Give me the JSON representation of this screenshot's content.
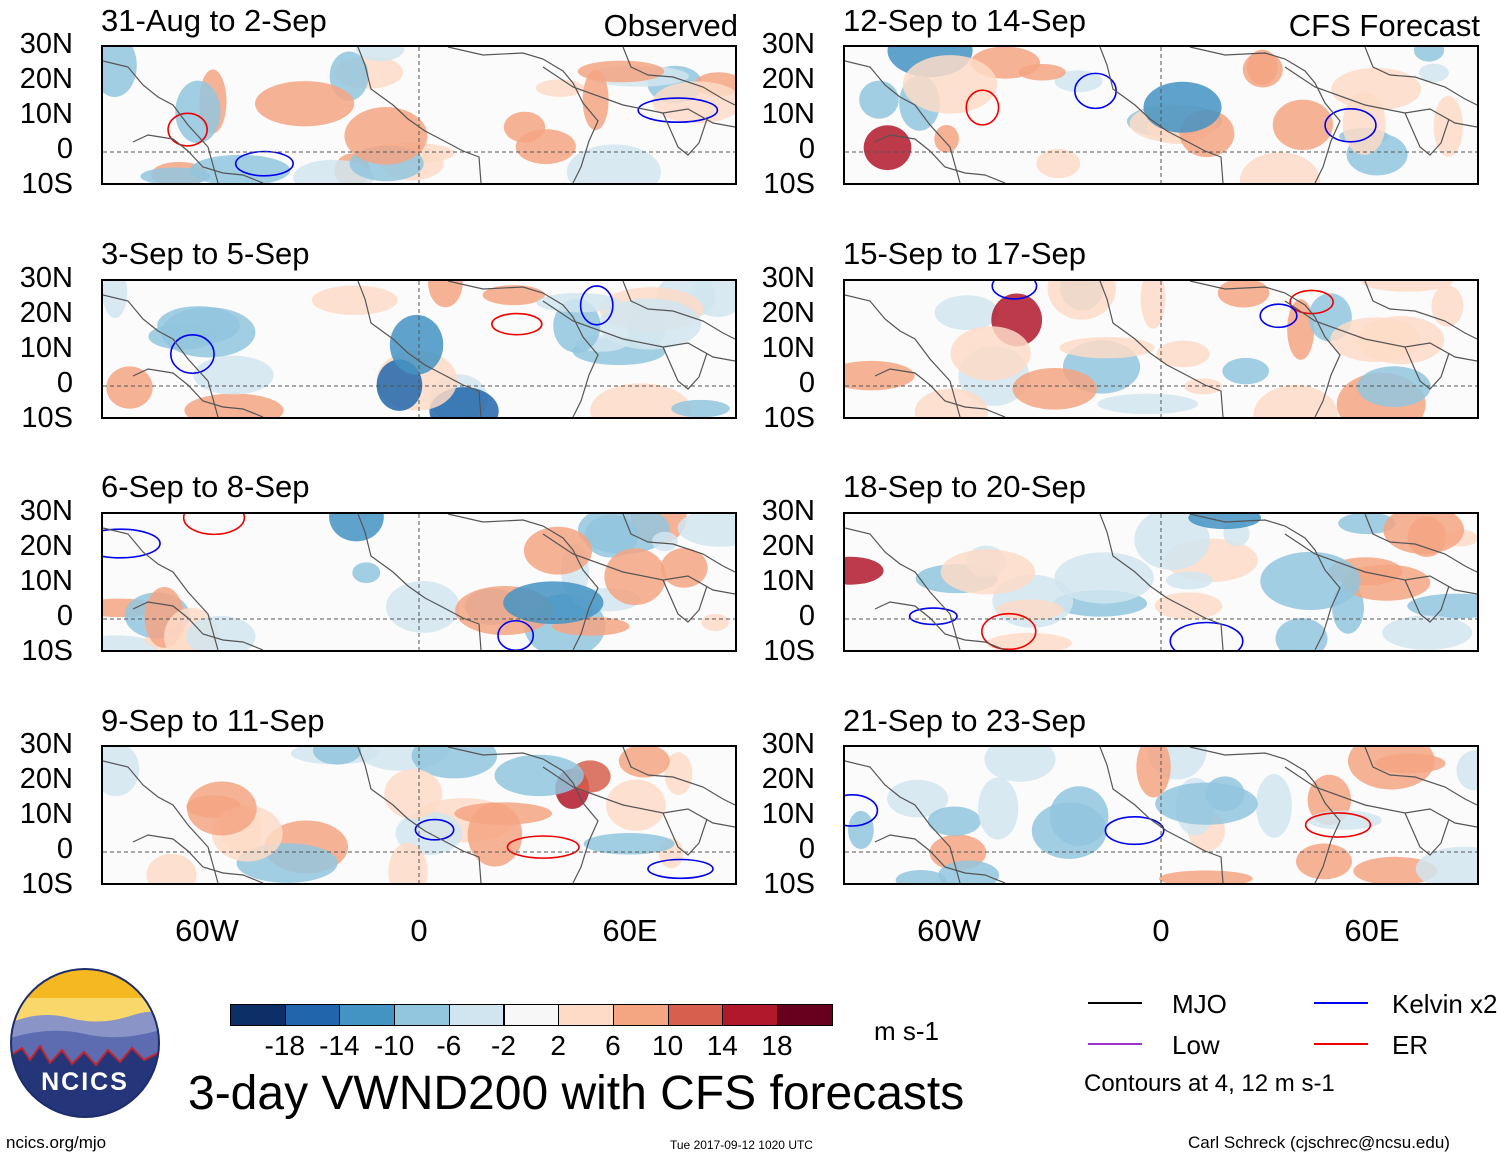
{
  "headers": {
    "observed": "Observed",
    "forecast": "CFS Forecast"
  },
  "panels": [
    {
      "title": "31-Aug to 2-Sep"
    },
    {
      "title": "3-Sep to 5-Sep"
    },
    {
      "title": "6-Sep to 8-Sep"
    },
    {
      "title": "9-Sep to 11-Sep"
    },
    {
      "title": "12-Sep to 14-Sep"
    },
    {
      "title": "15-Sep to 17-Sep"
    },
    {
      "title": "18-Sep to 20-Sep"
    },
    {
      "title": "21-Sep to 23-Sep"
    }
  ],
  "lat_labels": [
    "30N",
    "20N",
    "10N",
    "0",
    "10S"
  ],
  "lon_labels": [
    "60W",
    "0",
    "60E"
  ],
  "colorbar": {
    "ticks": [
      "-18",
      "-14",
      "-10",
      "-6",
      "-2",
      "2",
      "6",
      "10",
      "14",
      "18"
    ],
    "colors": [
      "#0b2f66",
      "#2166ac",
      "#4393c3",
      "#92c5de",
      "#d1e5f0",
      "#f7f7f7",
      "#fddbc7",
      "#f4a582",
      "#d6604d",
      "#b2182b",
      "#67001f"
    ],
    "unit": "m s-1"
  },
  "legend": {
    "items": [
      {
        "label": "MJO",
        "color": "#000000"
      },
      {
        "label": "Kelvin x2",
        "color": "#0000ee"
      },
      {
        "label": "Low",
        "color": "#9933cc"
      },
      {
        "label": "ER",
        "color": "#ee0000"
      }
    ],
    "note": "Contours at 4, 12 m s-1"
  },
  "logo": {
    "text": "NCICS"
  },
  "main_title": "3-day VWND200 with CFS forecasts",
  "footer": {
    "left": "ncics.org/mjo",
    "center": "Tue 2017-09-12 1020 UTC",
    "right": "Carl Schreck (cjschrec@ncsu.edu)"
  }
}
